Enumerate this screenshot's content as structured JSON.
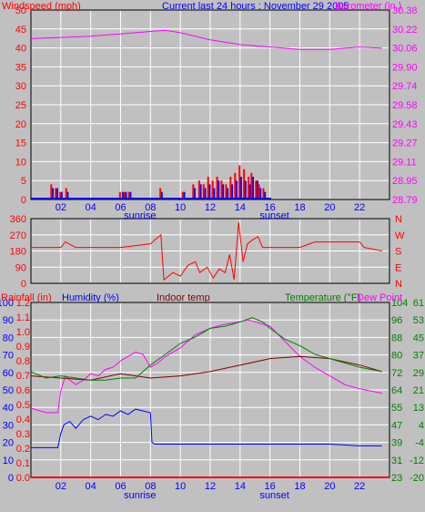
{
  "colors": {
    "background": "#c0c0c0",
    "plot_background": "#c0c0c0",
    "frame": "#000000",
    "grid": "#ffffff",
    "wind_speed": "#ff0000",
    "wind_gust": "#0000ff",
    "barometer": "#ff00ff",
    "wind_dir": "#ff0000",
    "rainfall": "#ff0000",
    "humidity": "#0000ff",
    "indoor_temp": "#800000",
    "temperature": "#008000",
    "dew_point": "#ff00ff"
  },
  "header": {
    "title": "Current last 24 hours : November 29 2005",
    "left_label": "Windspeed (mph)",
    "right_label": "Barometer (in.)"
  },
  "panel3_labels": {
    "rainfall": "Rainfall (in)",
    "humidity": "Humidity (%)",
    "indoor_temp": "Indoor temp",
    "temperature": "Temperature (°F)",
    "dew_point": "Dew Point"
  },
  "chart_data": [
    {
      "type": "bar",
      "panel": "wind",
      "x": {
        "ticks": [
          "02",
          "04",
          "06",
          "08",
          "10",
          "12",
          "14",
          "16",
          "18",
          "20",
          "22"
        ],
        "range_hours": [
          0,
          24
        ],
        "annotations": [
          {
            "label": "sunrise",
            "hour": 7.3
          },
          {
            "label": "sunset",
            "hour": 16.3
          }
        ]
      },
      "y_left": {
        "label": "Windspeed (mph)",
        "ylim": [
          0,
          50
        ],
        "ticks": [
          "0",
          "5",
          "10",
          "15",
          "20",
          "25",
          "30",
          "35",
          "40",
          "45",
          "50"
        ]
      },
      "y_right": {
        "label": "Barometer (in.)",
        "ylim": [
          28.79,
          30.38
        ],
        "ticks": [
          "28.79",
          "28.95",
          "29.11",
          "29.27",
          "29.43",
          "29.58",
          "29.74",
          "29.90",
          "30.06",
          "30.22",
          "30.38"
        ]
      },
      "series": [
        {
          "name": "wind_gust",
          "values": [
            [
              1.4,
              3
            ],
            [
              1.7,
              3
            ],
            [
              2.0,
              2
            ],
            [
              2.4,
              2
            ],
            [
              6.1,
              2
            ],
            [
              6.3,
              2
            ],
            [
              6.6,
              2
            ],
            [
              8.7,
              2
            ],
            [
              10.2,
              2
            ],
            [
              10.9,
              3
            ],
            [
              11.3,
              4
            ],
            [
              11.6,
              3
            ],
            [
              11.9,
              4
            ],
            [
              12.2,
              3
            ],
            [
              12.5,
              5
            ],
            [
              12.8,
              4
            ],
            [
              13.1,
              3
            ],
            [
              13.4,
              4
            ],
            [
              13.7,
              5
            ],
            [
              14.0,
              6
            ],
            [
              14.3,
              5
            ],
            [
              14.6,
              4
            ],
            [
              14.8,
              6
            ],
            [
              15.1,
              5
            ],
            [
              15.3,
              3
            ],
            [
              15.6,
              2
            ]
          ]
        },
        {
          "name": "wind_speed",
          "values": [
            [
              1.3,
              4
            ],
            [
              1.6,
              3
            ],
            [
              1.9,
              2
            ],
            [
              2.3,
              3
            ],
            [
              5.9,
              2
            ],
            [
              6.2,
              2
            ],
            [
              6.5,
              2
            ],
            [
              8.6,
              3
            ],
            [
              10.1,
              2
            ],
            [
              10.8,
              4
            ],
            [
              11.2,
              5
            ],
            [
              11.5,
              4
            ],
            [
              11.8,
              6
            ],
            [
              12.1,
              5
            ],
            [
              12.4,
              6
            ],
            [
              12.7,
              5
            ],
            [
              13.0,
              4
            ],
            [
              13.3,
              6
            ],
            [
              13.6,
              7
            ],
            [
              13.9,
              9
            ],
            [
              14.2,
              8
            ],
            [
              14.5,
              6
            ],
            [
              14.7,
              7
            ],
            [
              15.0,
              5
            ],
            [
              15.2,
              4
            ],
            [
              15.5,
              3
            ]
          ]
        },
        {
          "name": "barometer",
          "values": [
            [
              0,
              30.14
            ],
            [
              2,
              30.15
            ],
            [
              4,
              30.16
            ],
            [
              6,
              30.18
            ],
            [
              8,
              30.2
            ],
            [
              9,
              30.21
            ],
            [
              10,
              30.19
            ],
            [
              12,
              30.13
            ],
            [
              14,
              30.09
            ],
            [
              16,
              30.07
            ],
            [
              18,
              30.05
            ],
            [
              20,
              30.05
            ],
            [
              22,
              30.07
            ],
            [
              23.5,
              30.06
            ]
          ]
        }
      ]
    },
    {
      "type": "line",
      "panel": "wind_direction",
      "y_left": {
        "ylim": [
          0,
          360
        ],
        "ticks": [
          "0",
          "90",
          "180",
          "270",
          "360"
        ]
      },
      "y_right": {
        "ticks": [
          "N",
          "E",
          "S",
          "W",
          "N"
        ]
      },
      "series": [
        {
          "name": "wind_direction",
          "values": [
            [
              0,
              200
            ],
            [
              2,
              200
            ],
            [
              2.3,
              230
            ],
            [
              3,
              200
            ],
            [
              4,
              200
            ],
            [
              6,
              200
            ],
            [
              8,
              220
            ],
            [
              8.7,
              270
            ],
            [
              8.9,
              20
            ],
            [
              9.5,
              60
            ],
            [
              10,
              40
            ],
            [
              10.5,
              100
            ],
            [
              11,
              120
            ],
            [
              11.3,
              60
            ],
            [
              11.8,
              90
            ],
            [
              12.2,
              30
            ],
            [
              12.6,
              80
            ],
            [
              13,
              60
            ],
            [
              13.3,
              160
            ],
            [
              13.6,
              20
            ],
            [
              13.9,
              340
            ],
            [
              14.2,
              120
            ],
            [
              14.5,
              220
            ],
            [
              14.8,
              240
            ],
            [
              15.2,
              260
            ],
            [
              15.5,
              200
            ],
            [
              16,
              200
            ],
            [
              18,
              200
            ],
            [
              19,
              230
            ],
            [
              22,
              230
            ],
            [
              22.3,
              200
            ],
            [
              23.5,
              180
            ]
          ]
        }
      ]
    },
    {
      "type": "line",
      "panel": "temperature_humidity",
      "x": {
        "ticks": [
          "02",
          "04",
          "06",
          "08",
          "10",
          "12",
          "14",
          "16",
          "18",
          "20",
          "22"
        ],
        "range_hours": [
          0,
          24
        ],
        "annotations": [
          {
            "label": "sunrise",
            "hour": 7.3
          },
          {
            "label": "sunset",
            "hour": 16.3
          }
        ]
      },
      "y_rain": {
        "label": "Rainfall (in)",
        "ylim": [
          0,
          1.2
        ],
        "ticks": [
          "0.0",
          "0.1",
          "0.2",
          "0.3",
          "0.4",
          "0.5",
          "0.6",
          "0.7",
          "0.8",
          "0.9",
          "1.0",
          "1.1",
          "1.2"
        ]
      },
      "y_humidity": {
        "label": "Humidity (%)",
        "ylim": [
          0,
          100
        ],
        "ticks": [
          "0",
          "10",
          "20",
          "30",
          "40",
          "50",
          "60",
          "70",
          "80",
          "90",
          "100"
        ]
      },
      "y_temp": {
        "label": "Temperature (°F)",
        "ticks": [
          "23",
          "31",
          "39",
          "47",
          "55",
          "64",
          "72",
          "80",
          "88",
          "96",
          "104"
        ]
      },
      "y_dew": {
        "label": "Dew Point",
        "ticks": [
          "-20",
          "-12",
          "-4",
          "4",
          "13",
          "21",
          "29",
          "37",
          "45",
          "53",
          "61"
        ]
      },
      "series": [
        {
          "name": "rainfall",
          "values": [
            [
              0,
              0
            ],
            [
              24,
              0
            ]
          ]
        },
        {
          "name": "humidity",
          "values": [
            [
              0,
              17
            ],
            [
              1.8,
              17
            ],
            [
              2.0,
              25
            ],
            [
              2.2,
              30
            ],
            [
              2.6,
              32
            ],
            [
              3,
              28
            ],
            [
              3.5,
              33
            ],
            [
              4,
              35
            ],
            [
              4.5,
              33
            ],
            [
              5,
              36
            ],
            [
              5.5,
              35
            ],
            [
              6,
              38
            ],
            [
              6.5,
              36
            ],
            [
              7,
              39
            ],
            [
              7.5,
              38
            ],
            [
              8,
              37
            ],
            [
              8.1,
              20
            ],
            [
              8.3,
              19
            ],
            [
              10,
              19
            ],
            [
              12,
              19
            ],
            [
              14,
              19
            ],
            [
              16,
              19
            ],
            [
              18,
              19
            ],
            [
              20,
              19
            ],
            [
              22,
              18
            ],
            [
              23.5,
              18
            ]
          ]
        },
        {
          "name": "dew_point",
          "values": [
            [
              0,
              12
            ],
            [
              0.5,
              11
            ],
            [
              1,
              10
            ],
            [
              1.8,
              10
            ],
            [
              2,
              20
            ],
            [
              2.3,
              27
            ],
            [
              2.6,
              25
            ],
            [
              3,
              23
            ],
            [
              3.5,
              25
            ],
            [
              4,
              28
            ],
            [
              4.5,
              27
            ],
            [
              5,
              30
            ],
            [
              5.5,
              31
            ],
            [
              6,
              34
            ],
            [
              6.5,
              36
            ],
            [
              7,
              38
            ],
            [
              7.5,
              37
            ],
            [
              8,
              31
            ],
            [
              8.5,
              33
            ],
            [
              9,
              36
            ],
            [
              10,
              40
            ],
            [
              11,
              46
            ],
            [
              12,
              49
            ],
            [
              13,
              51
            ],
            [
              14,
              52
            ],
            [
              14.5,
              53
            ],
            [
              15,
              52
            ],
            [
              16,
              50
            ],
            [
              17,
              43
            ],
            [
              18,
              36
            ],
            [
              19,
              31
            ],
            [
              20,
              27
            ],
            [
              21,
              23
            ],
            [
              22,
              21
            ],
            [
              23.5,
              19
            ]
          ]
        },
        {
          "name": "indoor_temp",
          "values": [
            [
              0,
              70
            ],
            [
              2,
              69
            ],
            [
              4,
              68
            ],
            [
              6,
              71
            ],
            [
              8,
              69
            ],
            [
              10,
              70
            ],
            [
              12,
              72
            ],
            [
              14,
              75
            ],
            [
              16,
              78
            ],
            [
              18,
              79
            ],
            [
              20,
              78
            ],
            [
              22,
              75
            ],
            [
              23.5,
              72
            ]
          ]
        },
        {
          "name": "temperature",
          "values": [
            [
              0,
              72
            ],
            [
              1,
              69
            ],
            [
              2,
              70
            ],
            [
              3,
              69
            ],
            [
              4,
              68
            ],
            [
              5,
              68
            ],
            [
              6,
              69
            ],
            [
              7,
              69
            ],
            [
              8,
              75
            ],
            [
              9,
              80
            ],
            [
              10,
              85
            ],
            [
              11,
              88
            ],
            [
              12,
              92
            ],
            [
              13,
              93
            ],
            [
              14,
              95
            ],
            [
              14.8,
              97
            ],
            [
              15.5,
              95
            ],
            [
              16,
              92
            ],
            [
              17,
              87
            ],
            [
              18,
              84
            ],
            [
              19,
              80
            ],
            [
              20,
              78
            ],
            [
              21,
              76
            ],
            [
              22,
              74
            ],
            [
              23.5,
              72
            ]
          ]
        }
      ]
    }
  ]
}
